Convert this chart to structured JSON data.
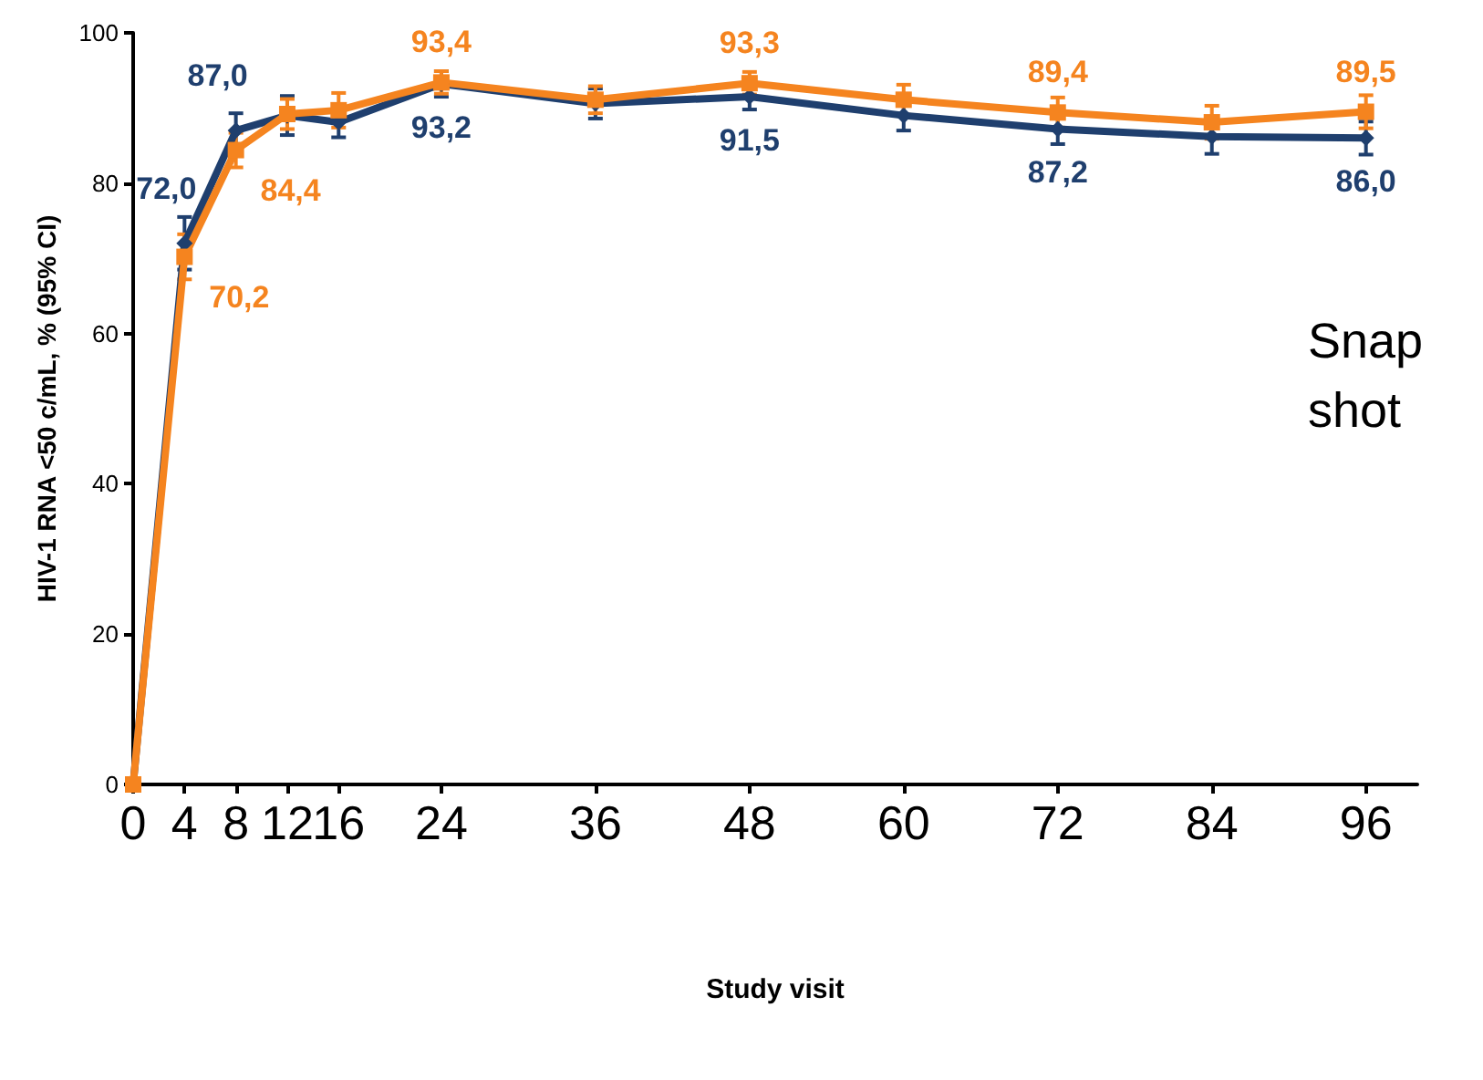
{
  "chart_data": {
    "type": "line",
    "xlabel": "Study visit",
    "ylabel": "HIV-1 RNA <50 c/mL, % (95% CI)",
    "x": [
      0,
      4,
      8,
      12,
      16,
      24,
      36,
      48,
      60,
      72,
      84,
      96
    ],
    "xlim": [
      0,
      100
    ],
    "xticks": [
      0,
      4,
      8,
      12,
      16,
      24,
      36,
      48,
      60,
      72,
      84,
      96
    ],
    "ylim": [
      0,
      100
    ],
    "yticks": [
      0,
      20,
      40,
      60,
      80,
      100
    ],
    "grid": false,
    "line_style": "solid",
    "annotations": [
      "Snap shot"
    ],
    "series": [
      {
        "color": "#1f3f6e",
        "marker": "diamond",
        "values": [
          0,
          72.0,
          87.0,
          89.0,
          88.1,
          93.2,
          90.6,
          91.5,
          89.0,
          87.2,
          86.2,
          86.0
        ],
        "errors": [
          null,
          3.5,
          2.3,
          2.6,
          2,
          1.7,
          2,
          1.7,
          2,
          2,
          2.3,
          2.2
        ],
        "value_labels": [
          null,
          "72,0",
          "87,0",
          null,
          null,
          "93,2",
          null,
          "91,5",
          null,
          "87,2",
          null,
          "86,0"
        ]
      },
      {
        "color": "#f5841f",
        "marker": "square",
        "values": [
          0,
          70.2,
          84.4,
          89.2,
          89.7,
          93.4,
          91.1,
          93.3,
          91.1,
          89.4,
          88.1,
          89.5
        ],
        "errors": [
          null,
          3,
          2.3,
          2,
          2.3,
          1.5,
          1.8,
          1.5,
          2,
          2,
          2.2,
          2.2
        ],
        "value_labels": [
          null,
          "70,2",
          "84,4",
          null,
          null,
          "93,4",
          null,
          "93,3",
          null,
          "89,4",
          null,
          "89,5"
        ]
      }
    ]
  }
}
